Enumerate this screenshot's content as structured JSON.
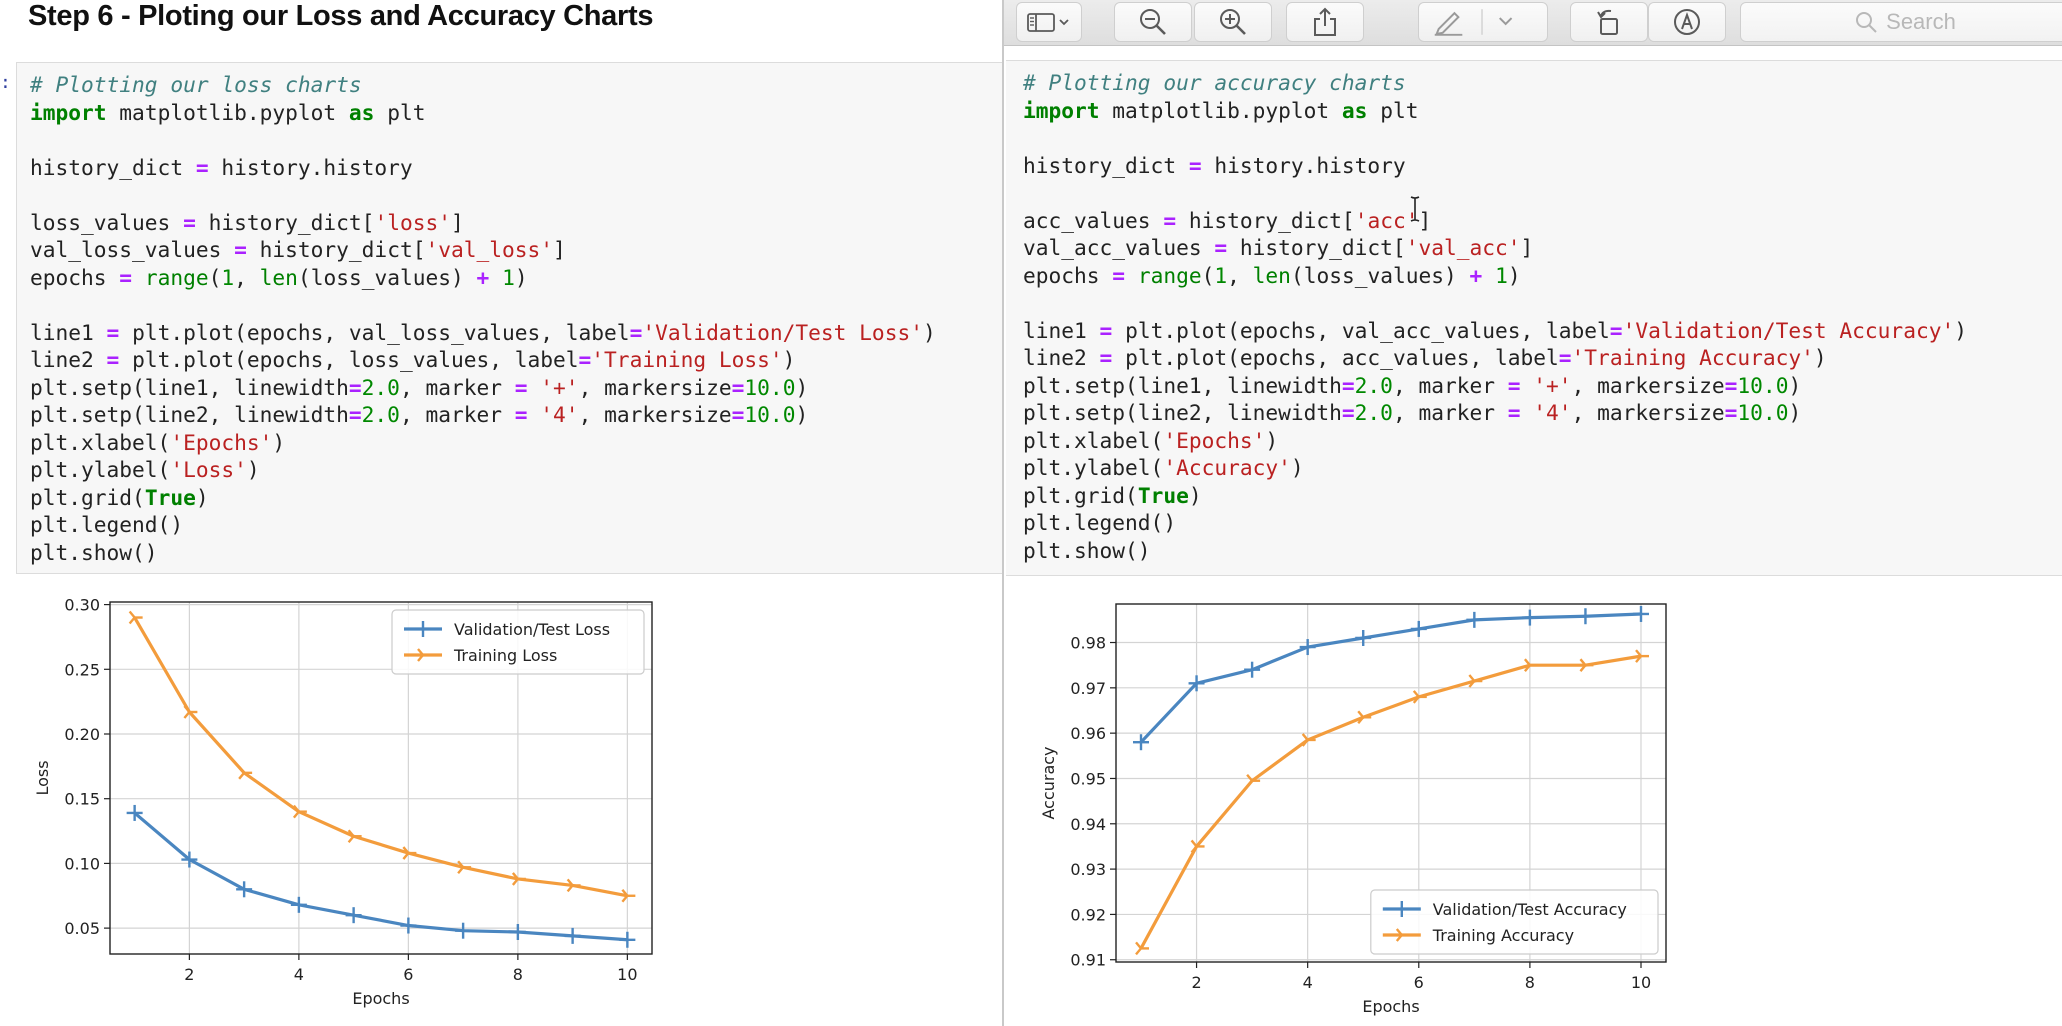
{
  "notebook": {
    "heading": "Step 6 - Ploting our Loss and Accuracy Charts",
    "prompt_mark": ":",
    "code_left": [
      [
        {
          "t": "# Plotting our loss charts",
          "c": "cm"
        }
      ],
      [
        {
          "t": "import",
          "c": "kw"
        },
        {
          "t": " matplotlib.pyplot "
        },
        {
          "t": "as",
          "c": "kw"
        },
        {
          "t": " plt"
        }
      ],
      [],
      [
        {
          "t": "history_dict "
        },
        {
          "t": "=",
          "c": "op"
        },
        {
          "t": " history.history"
        }
      ],
      [],
      [
        {
          "t": "loss_values "
        },
        {
          "t": "=",
          "c": "op"
        },
        {
          "t": " history_dict["
        },
        {
          "t": "'loss'",
          "c": "st"
        },
        {
          "t": "]"
        }
      ],
      [
        {
          "t": "val_loss_values "
        },
        {
          "t": "=",
          "c": "op"
        },
        {
          "t": " history_dict["
        },
        {
          "t": "'val_loss'",
          "c": "st"
        },
        {
          "t": "]"
        }
      ],
      [
        {
          "t": "epochs "
        },
        {
          "t": "=",
          "c": "op"
        },
        {
          "t": " "
        },
        {
          "t": "range",
          "c": "bi"
        },
        {
          "t": "("
        },
        {
          "t": "1",
          "c": "nu"
        },
        {
          "t": ", "
        },
        {
          "t": "len",
          "c": "bi"
        },
        {
          "t": "(loss_values) "
        },
        {
          "t": "+",
          "c": "op"
        },
        {
          "t": " "
        },
        {
          "t": "1",
          "c": "nu"
        },
        {
          "t": ")"
        }
      ],
      [],
      [
        {
          "t": "line1 "
        },
        {
          "t": "=",
          "c": "op"
        },
        {
          "t": " plt.plot(epochs, val_loss_values, label"
        },
        {
          "t": "=",
          "c": "op"
        },
        {
          "t": "'Validation/Test Loss'",
          "c": "st"
        },
        {
          "t": ")"
        }
      ],
      [
        {
          "t": "line2 "
        },
        {
          "t": "=",
          "c": "op"
        },
        {
          "t": " plt.plot(epochs, loss_values, label"
        },
        {
          "t": "=",
          "c": "op"
        },
        {
          "t": "'Training Loss'",
          "c": "st"
        },
        {
          "t": ")"
        }
      ],
      [
        {
          "t": "plt.setp(line1, linewidth"
        },
        {
          "t": "=",
          "c": "op"
        },
        {
          "t": "2.0",
          "c": "nu"
        },
        {
          "t": ", marker "
        },
        {
          "t": "=",
          "c": "op"
        },
        {
          "t": " "
        },
        {
          "t": "'+'",
          "c": "st"
        },
        {
          "t": ", markersize"
        },
        {
          "t": "=",
          "c": "op"
        },
        {
          "t": "10.0",
          "c": "nu"
        },
        {
          "t": ")"
        }
      ],
      [
        {
          "t": "plt.setp(line2, linewidth"
        },
        {
          "t": "=",
          "c": "op"
        },
        {
          "t": "2.0",
          "c": "nu"
        },
        {
          "t": ", marker "
        },
        {
          "t": "=",
          "c": "op"
        },
        {
          "t": " "
        },
        {
          "t": "'4'",
          "c": "st"
        },
        {
          "t": ", markersize"
        },
        {
          "t": "=",
          "c": "op"
        },
        {
          "t": "10.0",
          "c": "nu"
        },
        {
          "t": ")"
        }
      ],
      [
        {
          "t": "plt.xlabel("
        },
        {
          "t": "'Epochs'",
          "c": "st"
        },
        {
          "t": ")"
        }
      ],
      [
        {
          "t": "plt.ylabel("
        },
        {
          "t": "'Loss'",
          "c": "st"
        },
        {
          "t": ")"
        }
      ],
      [
        {
          "t": "plt.grid("
        },
        {
          "t": "True",
          "c": "kw"
        },
        {
          "t": ")"
        }
      ],
      [
        {
          "t": "plt.legend()"
        }
      ],
      [
        {
          "t": "plt.show()"
        }
      ]
    ],
    "code_right": [
      [
        {
          "t": "# Plotting our accuracy charts",
          "c": "cm"
        }
      ],
      [
        {
          "t": "import",
          "c": "kw"
        },
        {
          "t": " matplotlib.pyplot "
        },
        {
          "t": "as",
          "c": "kw"
        },
        {
          "t": " plt"
        }
      ],
      [],
      [
        {
          "t": "history_dict "
        },
        {
          "t": "=",
          "c": "op"
        },
        {
          "t": " history.history"
        }
      ],
      [],
      [
        {
          "t": "acc_values "
        },
        {
          "t": "=",
          "c": "op"
        },
        {
          "t": " history_dict["
        },
        {
          "t": "'acc'",
          "c": "st"
        },
        {
          "t": "]"
        }
      ],
      [
        {
          "t": "val_acc_values "
        },
        {
          "t": "=",
          "c": "op"
        },
        {
          "t": " history_dict["
        },
        {
          "t": "'val_acc'",
          "c": "st"
        },
        {
          "t": "]"
        }
      ],
      [
        {
          "t": "epochs "
        },
        {
          "t": "=",
          "c": "op"
        },
        {
          "t": " "
        },
        {
          "t": "range",
          "c": "bi"
        },
        {
          "t": "("
        },
        {
          "t": "1",
          "c": "nu"
        },
        {
          "t": ", "
        },
        {
          "t": "len",
          "c": "bi"
        },
        {
          "t": "(loss_values) "
        },
        {
          "t": "+",
          "c": "op"
        },
        {
          "t": " "
        },
        {
          "t": "1",
          "c": "nu"
        },
        {
          "t": ")"
        }
      ],
      [],
      [
        {
          "t": "line1 "
        },
        {
          "t": "=",
          "c": "op"
        },
        {
          "t": " plt.plot(epochs, val_acc_values, label"
        },
        {
          "t": "=",
          "c": "op"
        },
        {
          "t": "'Validation/Test Accuracy'",
          "c": "st"
        },
        {
          "t": ")"
        }
      ],
      [
        {
          "t": "line2 "
        },
        {
          "t": "=",
          "c": "op"
        },
        {
          "t": " plt.plot(epochs, acc_values, label"
        },
        {
          "t": "=",
          "c": "op"
        },
        {
          "t": "'Training Accuracy'",
          "c": "st"
        },
        {
          "t": ")"
        }
      ],
      [
        {
          "t": "plt.setp(line1, linewidth"
        },
        {
          "t": "=",
          "c": "op"
        },
        {
          "t": "2.0",
          "c": "nu"
        },
        {
          "t": ", marker "
        },
        {
          "t": "=",
          "c": "op"
        },
        {
          "t": " "
        },
        {
          "t": "'+'",
          "c": "st"
        },
        {
          "t": ", markersize"
        },
        {
          "t": "=",
          "c": "op"
        },
        {
          "t": "10.0",
          "c": "nu"
        },
        {
          "t": ")"
        }
      ],
      [
        {
          "t": "plt.setp(line2, linewidth"
        },
        {
          "t": "=",
          "c": "op"
        },
        {
          "t": "2.0",
          "c": "nu"
        },
        {
          "t": ", marker "
        },
        {
          "t": "=",
          "c": "op"
        },
        {
          "t": " "
        },
        {
          "t": "'4'",
          "c": "st"
        },
        {
          "t": ", markersize"
        },
        {
          "t": "=",
          "c": "op"
        },
        {
          "t": "10.0",
          "c": "nu"
        },
        {
          "t": ")"
        }
      ],
      [
        {
          "t": "plt.xlabel("
        },
        {
          "t": "'Epochs'",
          "c": "st"
        },
        {
          "t": ")"
        }
      ],
      [
        {
          "t": "plt.ylabel("
        },
        {
          "t": "'Accuracy'",
          "c": "st"
        },
        {
          "t": ")"
        }
      ],
      [
        {
          "t": "plt.grid("
        },
        {
          "t": "True",
          "c": "kw"
        },
        {
          "t": ")"
        }
      ],
      [
        {
          "t": "plt.legend()"
        }
      ],
      [
        {
          "t": "plt.show()"
        }
      ]
    ]
  },
  "preview_toolbar": {
    "search_placeholder": "Search",
    "buttons": [
      "sidebar-icon",
      "zoom-out-icon",
      "zoom-in-icon",
      "share-icon",
      "markup-pen-icon",
      "chevron-down-icon",
      "rotate-icon",
      "annotate-icon"
    ]
  },
  "colors": {
    "series_blue": "#4a86c0",
    "series_orange": "#f39c3c",
    "grid": "#d4d4d4"
  },
  "chart_data": [
    {
      "type": "line",
      "title": "",
      "xlabel": "Epochs",
      "ylabel": "Loss",
      "x": [
        1,
        2,
        3,
        4,
        5,
        6,
        7,
        8,
        9,
        10
      ],
      "xlim": [
        0.55,
        10.45
      ],
      "ylim": [
        0.03,
        0.302
      ],
      "xticks": [
        2,
        4,
        6,
        8,
        10
      ],
      "yticks": [
        0.05,
        0.1,
        0.15,
        0.2,
        0.25,
        0.3
      ],
      "ytick_labels": [
        "0.05",
        "0.10",
        "0.15",
        "0.20",
        "0.25",
        "0.30"
      ],
      "grid": true,
      "legend": "top-right",
      "series": [
        {
          "name": "Validation/Test Loss",
          "marker": "+",
          "color": "#4a86c0",
          "values": [
            0.139,
            0.103,
            0.08,
            0.068,
            0.06,
            0.052,
            0.048,
            0.047,
            0.044,
            0.041
          ]
        },
        {
          "name": "Training Loss",
          "marker": "4",
          "color": "#f39c3c",
          "values": [
            0.29,
            0.217,
            0.17,
            0.14,
            0.121,
            0.108,
            0.097,
            0.088,
            0.083,
            0.075
          ]
        }
      ]
    },
    {
      "type": "line",
      "title": "",
      "xlabel": "Epochs",
      "ylabel": "Accuracy",
      "x": [
        1,
        2,
        3,
        4,
        5,
        6,
        7,
        8,
        9,
        10
      ],
      "xlim": [
        0.55,
        10.45
      ],
      "ylim": [
        0.9095,
        0.9885
      ],
      "xticks": [
        2,
        4,
        6,
        8,
        10
      ],
      "yticks": [
        0.91,
        0.92,
        0.93,
        0.94,
        0.95,
        0.96,
        0.97,
        0.98
      ],
      "ytick_labels": [
        "0.91",
        "0.92",
        "0.93",
        "0.94",
        "0.95",
        "0.96",
        "0.97",
        "0.98"
      ],
      "grid": true,
      "legend": "bottom-right",
      "series": [
        {
          "name": "Validation/Test Accuracy",
          "marker": "+",
          "color": "#4a86c0",
          "values": [
            0.958,
            0.971,
            0.974,
            0.979,
            0.981,
            0.983,
            0.985,
            0.9855,
            0.9858,
            0.9863
          ]
        },
        {
          "name": "Training Accuracy",
          "marker": "4",
          "color": "#f39c3c",
          "values": [
            0.9125,
            0.935,
            0.9495,
            0.9585,
            0.9635,
            0.968,
            0.9715,
            0.975,
            0.975,
            0.977
          ]
        }
      ]
    }
  ]
}
